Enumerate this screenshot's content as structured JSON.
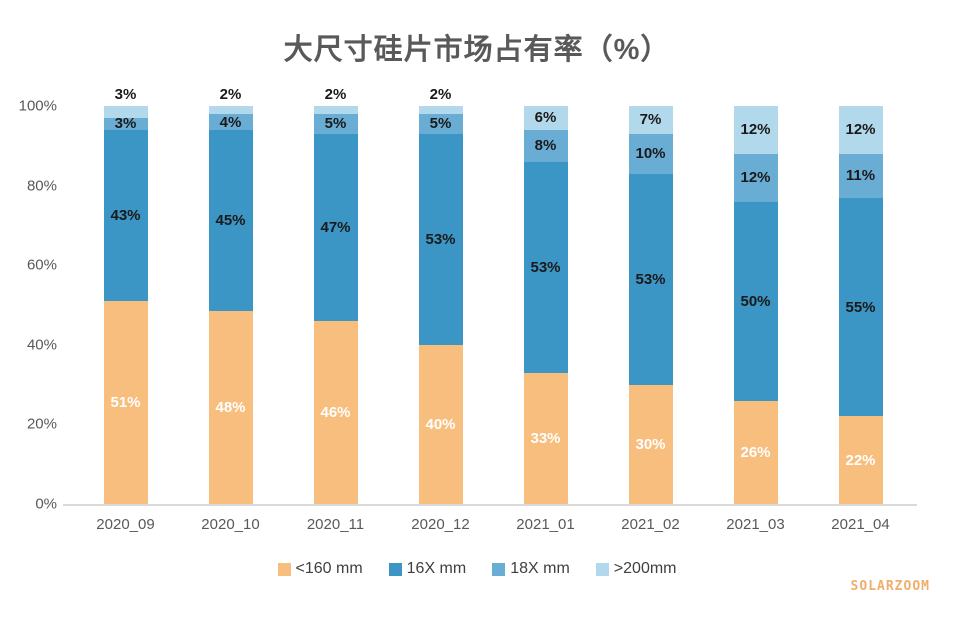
{
  "watermark": {
    "text": "SOLARZOOM",
    "color": "#f0ae6a"
  },
  "chart_data": {
    "type": "bar",
    "stacked": true,
    "title": "大尺寸硅片市场占有率（%）",
    "categories": [
      "2020_09",
      "2020_10",
      "2020_11",
      "2020_12",
      "2021_01",
      "2021_02",
      "2021_03",
      "2021_04"
    ],
    "series": [
      {
        "name": "<160 mm",
        "color": "#f7be7d",
        "label_color": "#ffffff",
        "values": [
          51,
          48,
          46,
          40,
          33,
          30,
          26,
          22
        ]
      },
      {
        "name": "16X mm",
        "color": "#3b95c5",
        "label_color": "#1a1a1a",
        "values": [
          43,
          45,
          47,
          53,
          53,
          53,
          50,
          55
        ]
      },
      {
        "name": "18X mm",
        "color": "#69add5",
        "label_color": "#1a1a1a",
        "values": [
          3,
          4,
          5,
          5,
          8,
          10,
          12,
          11
        ]
      },
      {
        "name": ">200mm",
        "color": "#b2d8ec",
        "label_color": "#1a1a1a",
        "values": [
          3,
          2,
          2,
          2,
          6,
          7,
          12,
          12
        ]
      }
    ],
    "y_ticks": [
      "0%",
      "20%",
      "40%",
      "60%",
      "80%",
      "100%"
    ],
    "ylim": [
      0,
      100
    ],
    "grid": false,
    "legend_position": "bottom",
    "top_label_outside_max": 3,
    "axis_color": "#d9d9d9",
    "tick_label_color": "#595959",
    "legend_text_color": "#404040"
  }
}
